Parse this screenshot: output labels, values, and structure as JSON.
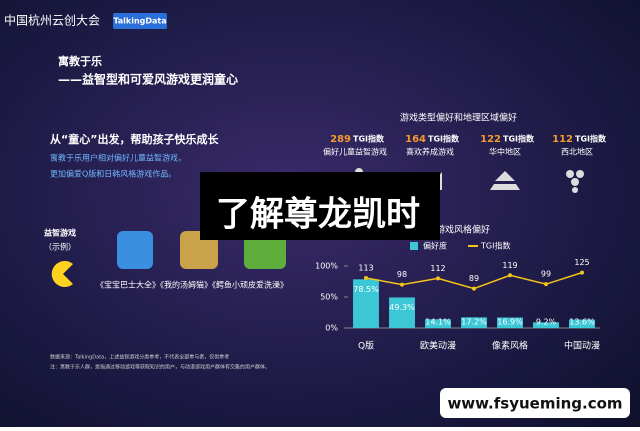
{
  "header": {
    "title": "中国杭州云创大会",
    "badge": "TalkingData"
  },
  "slide": {
    "heading": "寓教于乐",
    "subheading": "——益智型和可爱风游戏更润童心",
    "section_title": "从“童心”出发，帮助孩子快乐成长",
    "section_text": [
      "寓教于乐用户相对偏好儿童益智游戏，",
      "更加偏爱Q版和日韩风格游戏作品。"
    ],
    "example_label": [
      "益智游戏",
      "（示例）"
    ],
    "example_caption": "《宝宝巴士大全》《我的汤姆猫》《鳄鱼小顽皮爱洗澡》",
    "footnotes": [
      "数据来源：TalkingData，上述益智游戏分类参考，不代表全部参与者，仅供参考",
      "注：寓教于乐人群，是指通过移动游戏等获取知识的用户，与动漫游戏用户群体有交集的用户群体。"
    ]
  },
  "preferences": {
    "title": "游戏类型偏好和地理区域偏好",
    "items": [
      {
        "value": 289,
        "unit": "TGI指数",
        "label": "偏好儿童益智游戏"
      },
      {
        "value": 164,
        "unit": "TGI指数",
        "label": "喜欢养成游戏"
      },
      {
        "value": 122,
        "unit": "TGI指数",
        "label": "华中地区"
      },
      {
        "value": 112,
        "unit": "TGI指数",
        "label": "西北地区"
      }
    ]
  },
  "chart_data": {
    "type": "bar",
    "title": "动漫游戏风格偏好",
    "categories": [
      "Q版",
      null,
      "欧美动漫",
      null,
      "像素风格",
      null,
      "中国动漫"
    ],
    "series": [
      {
        "name": "偏好度",
        "color": "#3cc7d6",
        "values": [
          78.5,
          49.3,
          14.1,
          17.2,
          16.9,
          9.2,
          13.6
        ],
        "value_labels": [
          "78.5%",
          "49.3%",
          "14.1%",
          "17.2%",
          "16.9%",
          "9.2%",
          "13.6%"
        ]
      },
      {
        "name": "TGI指数",
        "type": "line",
        "color": "#f5c518",
        "axis": "y2",
        "values": [
          113,
          98,
          112,
          89,
          119,
          99,
          125
        ]
      }
    ],
    "ylim": [
      0,
      100
    ],
    "yticks": [
      {
        "value": 100,
        "label": "100%"
      },
      {
        "value": 50,
        "label": "50%"
      },
      {
        "value": 0,
        "label": "0%"
      }
    ],
    "y2lim": [
      0,
      140
    ]
  },
  "overlay": "了解尊龙凯时",
  "watermark": "www.fsyueming.com"
}
